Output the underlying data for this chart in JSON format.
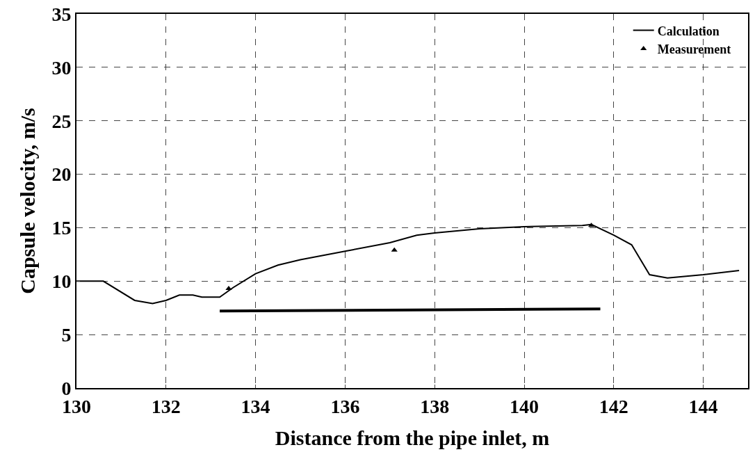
{
  "chart_data": {
    "type": "line",
    "xlabel": "Distance from the pipe inlet, m",
    "ylabel": "Capsule velocity, m/s",
    "xlim": [
      130,
      145
    ],
    "xticks": [
      130,
      132,
      134,
      136,
      138,
      140,
      142,
      144
    ],
    "ylim": [
      0,
      35
    ],
    "yticks": [
      0,
      5,
      10,
      15,
      20,
      25,
      30,
      35
    ],
    "grid": true,
    "legend": "top right",
    "series": [
      {
        "name": "Calculation",
        "type": "line",
        "marker": "none",
        "color": "#000000",
        "x": [
          130,
          130.6,
          131.3,
          131.7,
          132,
          132.3,
          132.6,
          132.8,
          133.2,
          133.5,
          134,
          134.5,
          135,
          136,
          137,
          137.6,
          138,
          139,
          140,
          141.3,
          141.5,
          142,
          142.4,
          142.8,
          143.2,
          144,
          144.8
        ],
        "values": [
          10,
          10,
          8.2,
          7.9,
          8.2,
          8.7,
          8.7,
          8.5,
          8.5,
          9.4,
          10.7,
          11.5,
          12,
          12.8,
          13.6,
          14.3,
          14.5,
          14.9,
          15.1,
          15.2,
          15.3,
          14.3,
          13.4,
          10.6,
          10.3,
          10.6,
          11
        ]
      },
      {
        "name": "Measurement",
        "type": "scatter",
        "marker": "triangle",
        "color": "#000000",
        "x": [
          133.4,
          137.1,
          141.5
        ],
        "values": [
          9.3,
          12.9,
          15.2
        ]
      },
      {
        "marker": "none",
        "color": "#000000",
        "x": [
          133.2,
          141.7
        ],
        "values": [
          7.2,
          7.4
        ]
      }
    ]
  }
}
